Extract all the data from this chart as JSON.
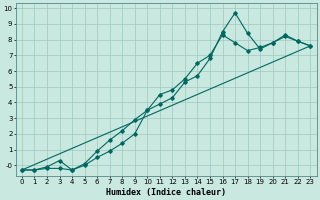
{
  "xlabel": "Humidex (Indice chaleur)",
  "xlim": [
    -0.5,
    23.5
  ],
  "ylim": [
    -0.7,
    10.3
  ],
  "yticks": [
    0,
    1,
    2,
    3,
    4,
    5,
    6,
    7,
    8,
    9,
    10
  ],
  "ytick_labels": [
    "-0",
    "1",
    "2",
    "3",
    "4",
    "5",
    "6",
    "7",
    "8",
    "9",
    "10"
  ],
  "xticks": [
    0,
    1,
    2,
    3,
    4,
    5,
    6,
    7,
    8,
    9,
    10,
    11,
    12,
    13,
    14,
    15,
    16,
    17,
    18,
    19,
    20,
    21,
    22,
    23
  ],
  "bg_color": "#c8e8e0",
  "grid_color": "#a0c8c0",
  "line_color": "#006860",
  "line1_x": [
    0,
    1,
    2,
    3,
    4,
    5,
    6,
    7,
    8,
    9,
    10,
    11,
    12,
    13,
    14,
    15,
    16,
    17,
    18,
    19,
    20,
    21,
    22,
    23
  ],
  "line1_y": [
    -0.3,
    -0.3,
    -0.2,
    -0.2,
    -0.3,
    0.0,
    0.5,
    0.9,
    1.4,
    2.0,
    3.5,
    3.9,
    4.3,
    5.3,
    5.7,
    6.8,
    8.5,
    9.7,
    8.4,
    7.4,
    7.8,
    8.3,
    7.9,
    7.6
  ],
  "line2_x": [
    0,
    1,
    2,
    3,
    4,
    5,
    6,
    7,
    8,
    9,
    10,
    11,
    12,
    13,
    14,
    15,
    16,
    17,
    18,
    19,
    20,
    21,
    22,
    23
  ],
  "line2_y": [
    -0.3,
    -0.3,
    -0.1,
    0.3,
    -0.3,
    0.1,
    0.9,
    1.6,
    2.2,
    2.9,
    3.5,
    4.5,
    4.8,
    5.5,
    6.5,
    7.0,
    8.3,
    7.8,
    7.3,
    7.5,
    7.8,
    8.2,
    7.9,
    7.6
  ],
  "line3_x": [
    0,
    23
  ],
  "line3_y": [
    -0.3,
    7.6
  ]
}
